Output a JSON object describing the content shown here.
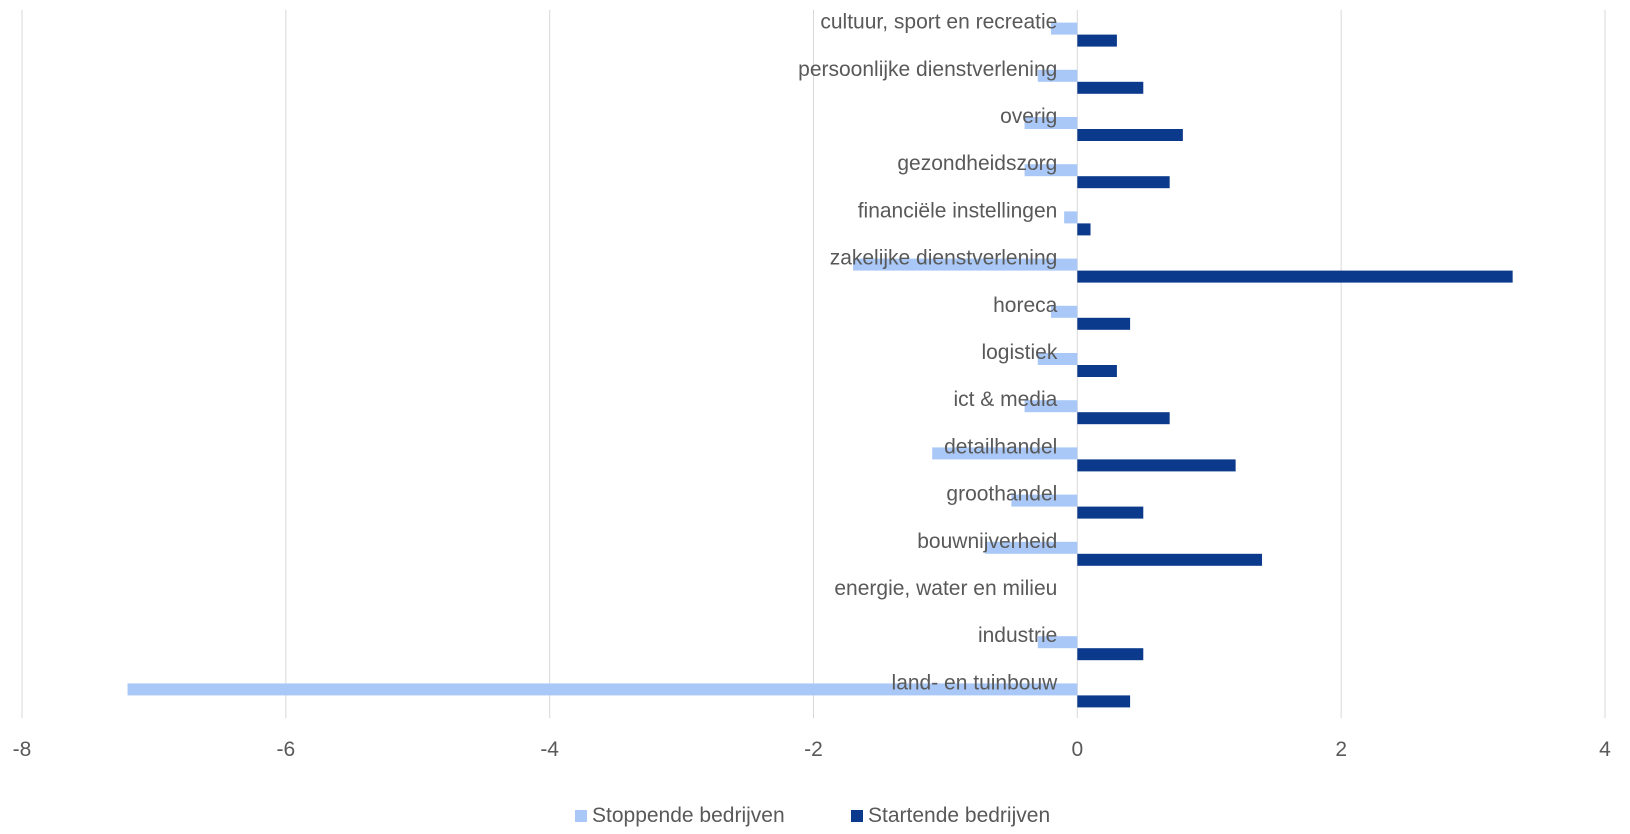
{
  "chart_data": {
    "type": "bar",
    "orientation": "horizontal",
    "categories": [
      "land- en tuinbouw",
      "industrie",
      "energie, water en milieu",
      "bouwnijverheid",
      "groothandel",
      "detailhandel",
      "ict & media",
      "logistiek",
      "horeca",
      "zakelijke dienstverlening",
      "financiële instellingen",
      "gezondheidszorg",
      "overig",
      "persoonlijke dienstverlening",
      "cultuur, sport en recreatie"
    ],
    "series": [
      {
        "name": "Stoppende bedrijven",
        "color": "#a9c8f7",
        "values": [
          -7.2,
          -0.3,
          0,
          -0.7,
          -0.5,
          -1.1,
          -0.4,
          -0.3,
          -0.2,
          -1.7,
          -0.1,
          -0.4,
          -0.4,
          -0.3,
          -0.2
        ]
      },
      {
        "name": "Startende bedrijven",
        "color": "#0b3a8c",
        "values": [
          0.4,
          0.5,
          0,
          1.4,
          0.5,
          1.2,
          0.7,
          0.3,
          0.4,
          3.3,
          0.1,
          0.7,
          0.8,
          0.5,
          0.3
        ]
      }
    ],
    "xlim": [
      -8,
      4
    ],
    "xticks": [
      "-8",
      "-6",
      "-4",
      "-2",
      "0",
      "2",
      "4"
    ],
    "grid": true,
    "legend_position": "bottom"
  }
}
